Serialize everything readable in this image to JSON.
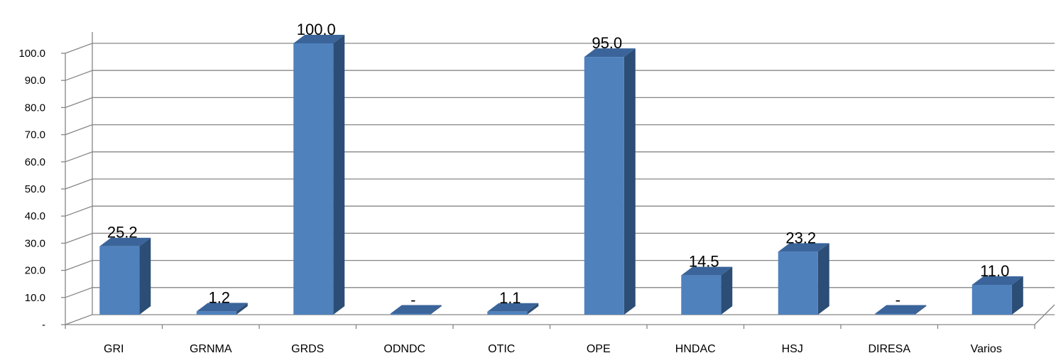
{
  "chart_data": {
    "type": "bar",
    "style": "3d-column",
    "categories": [
      "GRI",
      "GRNMA",
      "GRDS",
      "ODNDC",
      "OTIC",
      "OPE",
      "HNDAC",
      "HSJ",
      "DIRESA",
      "Varios"
    ],
    "values": [
      25.2,
      1.2,
      100.0,
      0,
      1.1,
      95.0,
      14.5,
      23.2,
      0,
      11.0
    ],
    "data_labels": [
      "25.2",
      "1.2",
      "100.0",
      "-",
      "1.1",
      "95.0",
      "14.5",
      "23.2",
      "-",
      "11.0"
    ],
    "y_ticks": [
      "-",
      "10.0",
      "20.0",
      "30.0",
      "40.0",
      "50.0",
      "60.0",
      "70.0",
      "80.0",
      "90.0",
      "100.0"
    ],
    "ylim": [
      0,
      100
    ],
    "grid": true,
    "legend": "none",
    "colors": {
      "bar_front": "#4F81BD",
      "bar_side": "#2C4D75",
      "bar_top": "#3A649A",
      "grid": "#868686"
    }
  }
}
